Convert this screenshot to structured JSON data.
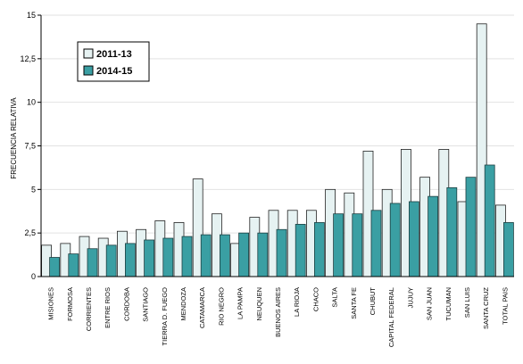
{
  "chart_data": {
    "type": "bar",
    "ylabel": "FRECUENCIA RELATIVA",
    "ylim": [
      0,
      15
    ],
    "yticks": [
      "0",
      "2,5",
      "5",
      "7,5",
      "10",
      "12,5",
      "15"
    ],
    "ytick_values": [
      0,
      2.5,
      5,
      7.5,
      10,
      12.5,
      15
    ],
    "legend_placement": "top-left",
    "categories": [
      "MISIONES",
      "FORMOSA",
      "CORRIENTES",
      "ENTRE RIOS",
      "CORDOBA",
      "SANTIAGO",
      "TIERRA D. FUEGO",
      "MENDOZA",
      "CATAMARCA",
      "RIO NEGRO",
      "LA PAMPA",
      "NEUQUEN",
      "BUENOS AIRES",
      "LA RIOJA",
      "CHACO",
      "SALTA",
      "SANTA FE",
      "CHUBUT",
      "CAPITAL FEDERAL",
      "JUJUY",
      "SAN JUAN",
      "TUCUMAN",
      "SAN LUIS",
      "SANTA CRUZ",
      "TOTAL PAIS"
    ],
    "series": [
      {
        "name": "2011-13",
        "color": "#e6f2f2",
        "values": [
          1.8,
          1.9,
          2.3,
          2.2,
          2.6,
          2.7,
          3.2,
          3.1,
          5.6,
          3.6,
          1.9,
          3.4,
          3.8,
          3.8,
          3.8,
          5.0,
          4.8,
          7.2,
          5.0,
          7.3,
          5.7,
          7.3,
          4.3,
          14.5,
          4.1
        ]
      },
      {
        "name": "2014-15",
        "color": "#3a9fa3",
        "values": [
          1.1,
          1.3,
          1.6,
          1.8,
          1.9,
          2.1,
          2.2,
          2.3,
          2.4,
          2.4,
          2.5,
          2.5,
          2.7,
          3.0,
          3.1,
          3.6,
          3.6,
          3.8,
          4.2,
          4.3,
          4.6,
          5.1,
          5.7,
          6.4,
          3.1
        ]
      }
    ]
  }
}
